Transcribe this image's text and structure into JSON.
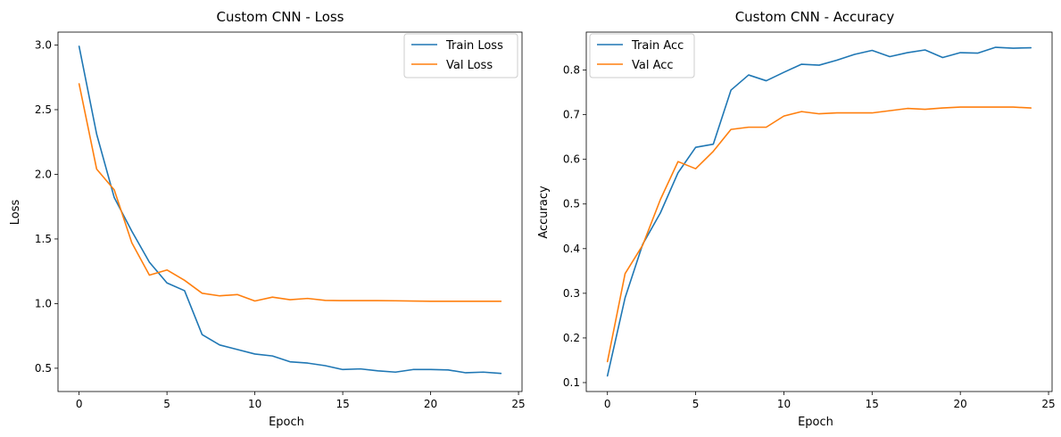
{
  "chart_data": [
    {
      "type": "line",
      "title": "Custom CNN - Loss",
      "xlabel": "Epoch",
      "ylabel": "Loss",
      "xlim": [
        -1.2,
        25.2
      ],
      "ylim": [
        0.32,
        3.1
      ],
      "xticks": [
        0,
        5,
        10,
        15,
        20,
        25
      ],
      "yticks": [
        0.5,
        1.0,
        1.5,
        2.0,
        2.5,
        3.0
      ],
      "ytick_labels": [
        "0.5",
        "1.0",
        "1.5",
        "2.0",
        "2.5",
        "3.0"
      ],
      "grid": false,
      "legend_position": "top-right",
      "x": [
        0,
        1,
        2,
        3,
        4,
        5,
        6,
        7,
        8,
        9,
        10,
        11,
        12,
        13,
        14,
        15,
        16,
        17,
        18,
        19,
        20,
        21,
        22,
        23,
        24
      ],
      "series": [
        {
          "name": "Train Loss",
          "color": "#1f77b4",
          "values": [
            2.99,
            2.31,
            1.82,
            1.56,
            1.32,
            1.16,
            1.1,
            0.76,
            0.68,
            0.645,
            0.61,
            0.595,
            0.55,
            0.54,
            0.52,
            0.49,
            0.495,
            0.48,
            0.47,
            0.49,
            0.49,
            0.487,
            0.465,
            0.47,
            0.46
          ]
        },
        {
          "name": "Val Loss",
          "color": "#ff7f0e",
          "values": [
            2.7,
            2.04,
            1.88,
            1.47,
            1.22,
            1.26,
            1.18,
            1.08,
            1.06,
            1.07,
            1.02,
            1.05,
            1.03,
            1.04,
            1.025,
            1.023,
            1.023,
            1.023,
            1.022,
            1.02,
            1.018,
            1.018,
            1.018,
            1.018,
            1.018
          ]
        }
      ]
    },
    {
      "type": "line",
      "title": "Custom CNN - Accuracy",
      "xlabel": "Epoch",
      "ylabel": "Accuracy",
      "xlim": [
        -1.2,
        25.2
      ],
      "ylim": [
        0.08,
        0.885
      ],
      "xticks": [
        0,
        5,
        10,
        15,
        20,
        25
      ],
      "yticks": [
        0.1,
        0.2,
        0.3,
        0.4,
        0.5,
        0.6,
        0.7,
        0.8
      ],
      "ytick_labels": [
        "0.1",
        "0.2",
        "0.3",
        "0.4",
        "0.5",
        "0.6",
        "0.7",
        "0.8"
      ],
      "grid": false,
      "legend_position": "top-left",
      "x": [
        0,
        1,
        2,
        3,
        4,
        5,
        6,
        7,
        8,
        9,
        10,
        11,
        12,
        13,
        14,
        15,
        16,
        17,
        18,
        19,
        20,
        21,
        22,
        23,
        24
      ],
      "series": [
        {
          "name": "Train Acc",
          "color": "#1f77b4",
          "values": [
            0.115,
            0.29,
            0.41,
            0.48,
            0.57,
            0.627,
            0.634,
            0.755,
            0.789,
            0.776,
            0.795,
            0.813,
            0.811,
            0.822,
            0.835,
            0.844,
            0.83,
            0.839,
            0.845,
            0.828,
            0.839,
            0.838,
            0.851,
            0.849,
            0.85
          ]
        },
        {
          "name": "Val Acc",
          "color": "#ff7f0e",
          "values": [
            0.147,
            0.344,
            0.408,
            0.51,
            0.595,
            0.579,
            0.618,
            0.667,
            0.672,
            0.672,
            0.697,
            0.707,
            0.702,
            0.704,
            0.704,
            0.704,
            0.709,
            0.714,
            0.712,
            0.715,
            0.717,
            0.717,
            0.717,
            0.717,
            0.715
          ]
        }
      ]
    }
  ]
}
